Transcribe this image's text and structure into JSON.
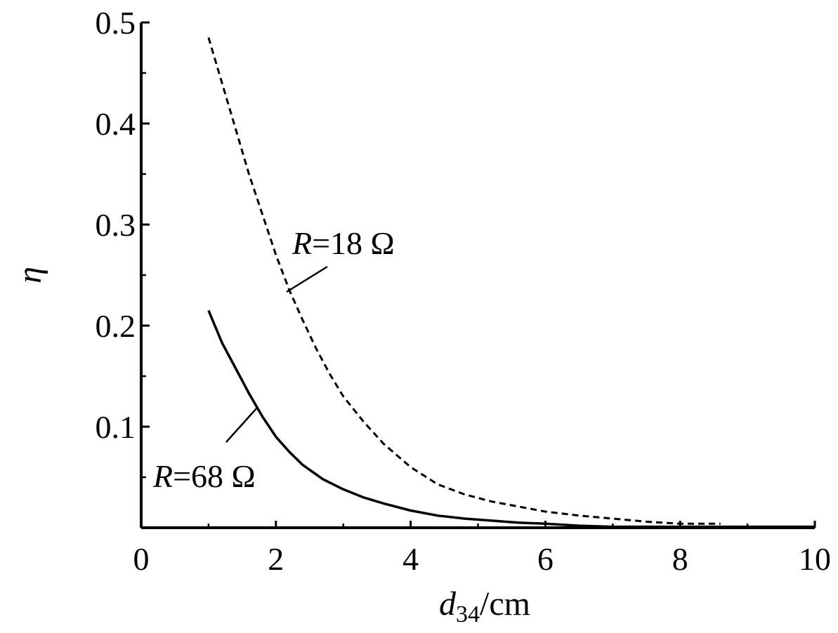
{
  "chart_data": {
    "type": "line",
    "xlabel": {
      "main": "d",
      "sub": "34",
      "unit": "/cm"
    },
    "ylabel": "η",
    "xlim": [
      0,
      10
    ],
    "ylim": [
      0,
      0.5
    ],
    "xticks": [
      0,
      2,
      4,
      6,
      8,
      10
    ],
    "yticks": [
      0.1,
      0.2,
      0.3,
      0.4,
      0.5
    ],
    "xtick_labels": [
      "0",
      "2",
      "4",
      "6",
      "8",
      "10"
    ],
    "ytick_labels": [
      "0.1",
      "0.2",
      "0.3",
      "0.4",
      "0.5"
    ],
    "grid": false,
    "legend": "none",
    "series": [
      {
        "label": {
          "var": "R",
          "rest": "=18 Ω"
        },
        "style": "dashed",
        "color": "#000000",
        "x": [
          1.0,
          1.2,
          1.4,
          1.6,
          1.8,
          2.0,
          2.2,
          2.4,
          2.6,
          2.8,
          3.0,
          3.3,
          3.6,
          4.0,
          4.4,
          4.8,
          5.2,
          5.6,
          6.0,
          6.5,
          7.0,
          7.5,
          8.0,
          8.6
        ],
        "y": [
          0.485,
          0.44,
          0.395,
          0.35,
          0.31,
          0.27,
          0.235,
          0.205,
          0.177,
          0.152,
          0.13,
          0.105,
          0.083,
          0.06,
          0.043,
          0.033,
          0.026,
          0.021,
          0.016,
          0.012,
          0.009,
          0.006,
          0.004,
          0.004
        ]
      },
      {
        "label": {
          "var": "R",
          "rest": "=68 Ω"
        },
        "style": "solid",
        "color": "#000000",
        "x": [
          1.0,
          1.2,
          1.4,
          1.6,
          1.8,
          2.0,
          2.2,
          2.4,
          2.7,
          3.0,
          3.3,
          3.6,
          4.0,
          4.4,
          4.8,
          5.2,
          5.6,
          6.0,
          6.5,
          7.0,
          7.5,
          8.0,
          9.0,
          10.0
        ],
        "y": [
          0.215,
          0.183,
          0.158,
          0.133,
          0.11,
          0.09,
          0.075,
          0.062,
          0.048,
          0.038,
          0.03,
          0.024,
          0.017,
          0.012,
          0.009,
          0.007,
          0.005,
          0.004,
          0.002,
          0.001,
          0.001,
          0.001,
          0.001,
          0.001
        ]
      }
    ]
  }
}
